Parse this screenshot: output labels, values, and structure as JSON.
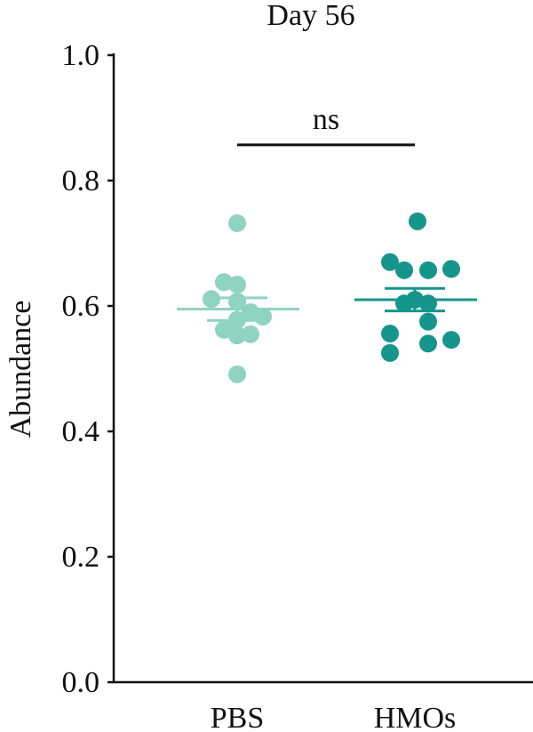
{
  "chart_data": {
    "type": "scatter",
    "title": "Day 56",
    "ylabel": "Abundance",
    "xlabel": "",
    "ylim": [
      0.0,
      1.0
    ],
    "yticks": [
      "0.0",
      "0.2",
      "0.4",
      "0.6",
      "0.8",
      "1.0"
    ],
    "categories": [
      "PBS",
      "HMOs"
    ],
    "grid": false,
    "legend": "none",
    "series": [
      {
        "category": "PBS",
        "color": "#8fd3c1",
        "points": [
          {
            "offset": 0.0,
            "y": 0.732
          },
          {
            "offset": -0.15,
            "y": 0.638
          },
          {
            "offset": 0.0,
            "y": 0.634
          },
          {
            "offset": -0.29,
            "y": 0.611
          },
          {
            "offset": 0.0,
            "y": 0.607
          },
          {
            "offset": 0.15,
            "y": 0.59
          },
          {
            "offset": 0.29,
            "y": 0.583
          },
          {
            "offset": 0.0,
            "y": 0.578
          },
          {
            "offset": -0.15,
            "y": 0.562
          },
          {
            "offset": 0.0,
            "y": 0.553
          },
          {
            "offset": 0.15,
            "y": 0.555
          },
          {
            "offset": 0.0,
            "y": 0.491
          }
        ],
        "mean": 0.595,
        "sem": 0.018
      },
      {
        "category": "HMOs",
        "color": "#16958c",
        "points": [
          {
            "offset": 0.03,
            "y": 0.735
          },
          {
            "offset": -0.28,
            "y": 0.67
          },
          {
            "offset": -0.12,
            "y": 0.657
          },
          {
            "offset": 0.15,
            "y": 0.657
          },
          {
            "offset": 0.41,
            "y": 0.659
          },
          {
            "offset": -0.12,
            "y": 0.604
          },
          {
            "offset": 0.15,
            "y": 0.604
          },
          {
            "offset": 0.0,
            "y": 0.61
          },
          {
            "offset": -0.28,
            "y": 0.556
          },
          {
            "offset": 0.15,
            "y": 0.575
          },
          {
            "offset": 0.15,
            "y": 0.54
          },
          {
            "offset": 0.41,
            "y": 0.546
          },
          {
            "offset": -0.28,
            "y": 0.525
          }
        ],
        "mean": 0.61,
        "sem": 0.018
      }
    ],
    "annotation": {
      "text": "ns",
      "y": 0.857,
      "from": "PBS",
      "to": "HMOs"
    }
  }
}
